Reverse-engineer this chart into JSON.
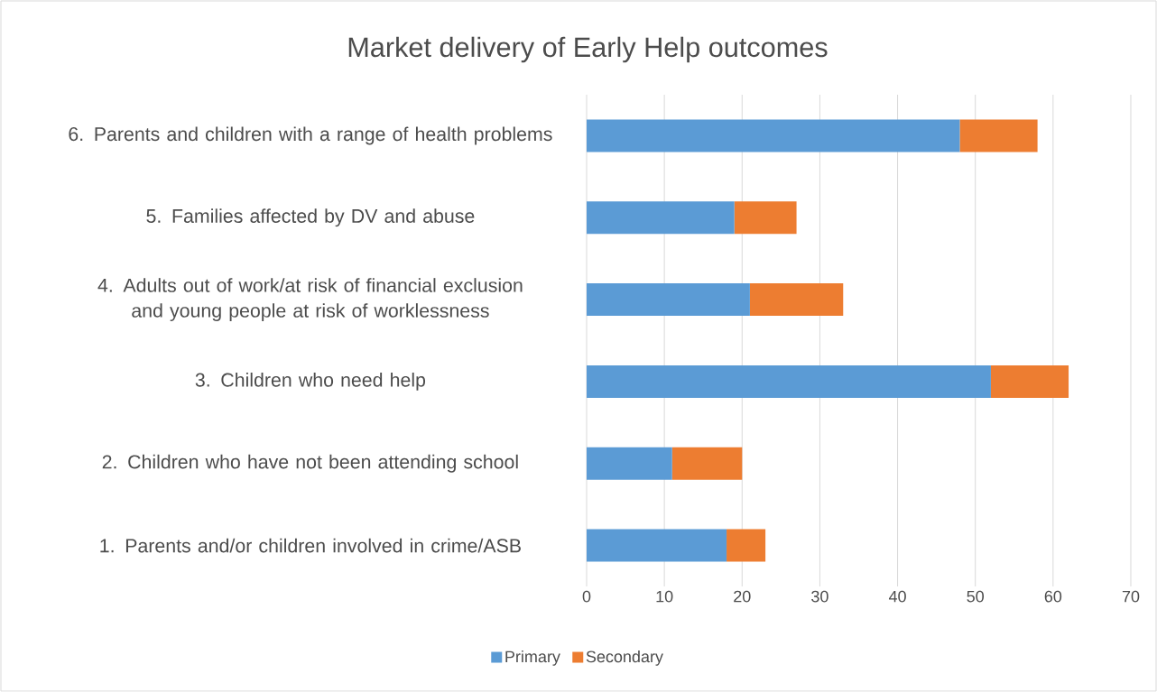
{
  "chart_data": {
    "type": "bar",
    "orientation": "horizontal",
    "stacked": true,
    "title": "Market delivery of Early Help outcomes",
    "categories": [
      "6.  Parents and children with a range of health problems",
      "5.  Families affected by DV and abuse",
      "4.  Adults out of work/at risk of financial exclusion and young people at risk of worklessness",
      "3. Children who need help",
      "2. Children who have not been attending school",
      "1. Parents and/or children involved in crime/ASB"
    ],
    "series": [
      {
        "name": "Primary",
        "color": "#5b9bd5",
        "values": [
          48,
          19,
          21,
          52,
          11,
          18
        ]
      },
      {
        "name": "Secondary",
        "color": "#ed7d31",
        "values": [
          10,
          8,
          12,
          10,
          9,
          5
        ]
      }
    ],
    "xlim": [
      0,
      70
    ],
    "xticks": [
      0,
      10,
      20,
      30,
      40,
      50,
      60,
      70
    ],
    "grid": "x",
    "legend": "bottom"
  }
}
